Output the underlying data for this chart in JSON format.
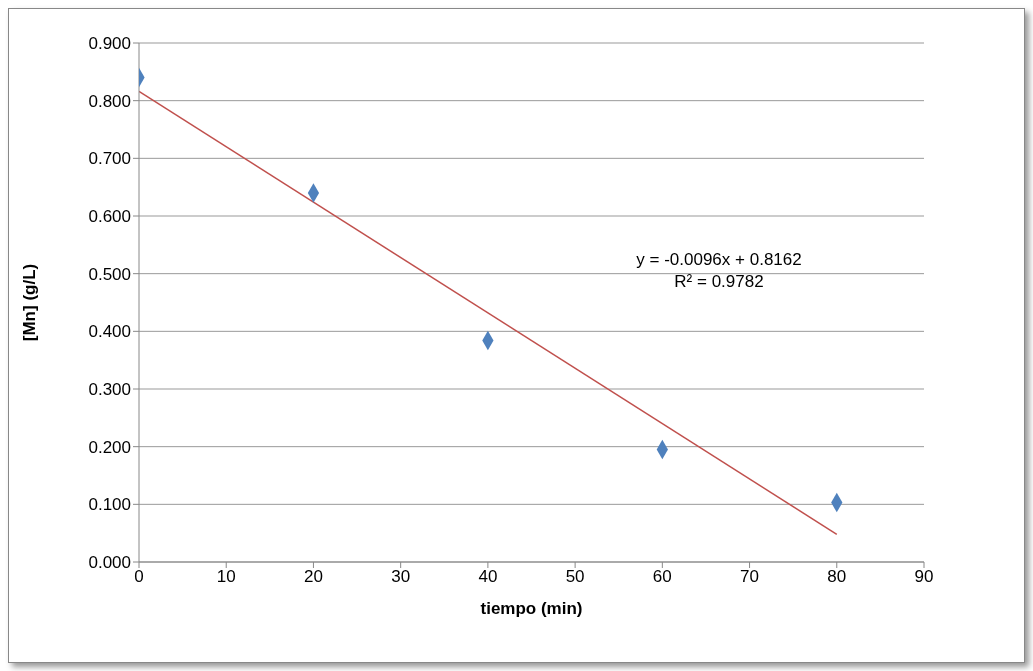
{
  "chart_data": {
    "type": "scatter",
    "xlabel": "tiempo (min)",
    "ylabel": "[Mn] (g/L)",
    "xlim": [
      0,
      90
    ],
    "xticks": [
      0,
      10,
      20,
      30,
      40,
      50,
      60,
      70,
      80,
      90
    ],
    "ylim": [
      0,
      0.9
    ],
    "yticks": [
      {
        "value": 0,
        "label": "0.000"
      },
      {
        "value": 0.1,
        "label": "0.100"
      },
      {
        "value": 0.2,
        "label": "0.200"
      },
      {
        "value": 0.3,
        "label": "0.300"
      },
      {
        "value": 0.4,
        "label": "0.400"
      },
      {
        "value": 0.5,
        "label": "0.500"
      },
      {
        "value": 0.6,
        "label": "0.600"
      },
      {
        "value": 0.7,
        "label": "0.700"
      },
      {
        "value": 0.8,
        "label": "0.800"
      },
      {
        "value": 0.9,
        "label": "0.900"
      }
    ],
    "grid": "y",
    "series": [
      {
        "marker": "diamond",
        "color": "#4f81bd",
        "x": [
          0,
          20,
          40,
          60,
          80
        ],
        "values": [
          0.84,
          0.64,
          0.384,
          0.195,
          0.103
        ]
      },
      {
        "type": "line",
        "color": "#c0504d",
        "x": [
          0,
          80
        ],
        "values": [
          0.816,
          0.048
        ]
      }
    ],
    "annotations": [
      "y = -0.0096x + 0.8162",
      "R² = 0.9782"
    ]
  }
}
